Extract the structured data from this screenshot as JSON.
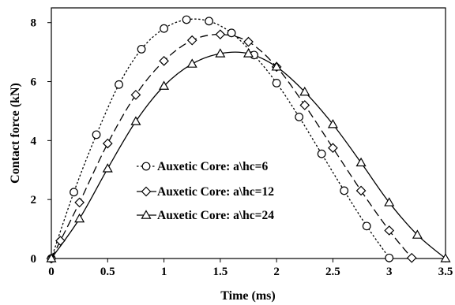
{
  "chart_data": {
    "type": "line",
    "title": "",
    "xlabel": "Time (ms)",
    "ylabel": "Contact force (kN)",
    "xlim": [
      0,
      3.5
    ],
    "ylim": [
      0,
      8.5
    ],
    "xticks": [
      0,
      0.5,
      1,
      1.5,
      2,
      2.5,
      3,
      3.5
    ],
    "xtick_labels": [
      "0",
      "0.5",
      "1",
      "1.5",
      "2",
      "2.5",
      "3",
      "3.5"
    ],
    "yticks": [
      0,
      2,
      4,
      6,
      8
    ],
    "ytick_labels": [
      "0",
      "2",
      "4",
      "6",
      "8"
    ],
    "grid": false,
    "legend_position": "center-left",
    "series": [
      {
        "name": "Auxetic Core: a\\hc=6",
        "marker": "circle",
        "line_style": "dotted",
        "color": "#000000",
        "points": [
          [
            0,
            0
          ],
          [
            0.2,
            2.25
          ],
          [
            0.4,
            4.2
          ],
          [
            0.6,
            5.9
          ],
          [
            0.8,
            7.1
          ],
          [
            1.0,
            7.8
          ],
          [
            1.2,
            8.1
          ],
          [
            1.4,
            8.05
          ],
          [
            1.6,
            7.65
          ],
          [
            1.8,
            6.9
          ],
          [
            2.0,
            5.95
          ],
          [
            2.2,
            4.8
          ],
          [
            2.4,
            3.55
          ],
          [
            2.6,
            2.3
          ],
          [
            2.8,
            1.1
          ],
          [
            3.0,
            0.02
          ]
        ]
      },
      {
        "name": "Auxetic Core: a\\hc=12",
        "marker": "diamond",
        "line_style": "dashed",
        "color": "#000000",
        "points": [
          [
            0,
            0
          ],
          [
            0.08,
            0.6
          ],
          [
            0.25,
            1.9
          ],
          [
            0.5,
            3.9
          ],
          [
            0.75,
            5.55
          ],
          [
            1.0,
            6.7
          ],
          [
            1.25,
            7.4
          ],
          [
            1.5,
            7.6
          ],
          [
            1.75,
            7.35
          ],
          [
            2.0,
            6.5
          ],
          [
            2.25,
            5.2
          ],
          [
            2.5,
            3.75
          ],
          [
            2.75,
            2.3
          ],
          [
            3.0,
            0.95
          ],
          [
            3.2,
            0.02
          ]
        ]
      },
      {
        "name": "Auxetic Core: a\\hc=24",
        "marker": "triangle",
        "line_style": "solid",
        "color": "#000000",
        "points": [
          [
            0,
            0
          ],
          [
            0.25,
            1.35
          ],
          [
            0.5,
            3.05
          ],
          [
            0.75,
            4.65
          ],
          [
            1.0,
            5.85
          ],
          [
            1.25,
            6.6
          ],
          [
            1.5,
            6.95
          ],
          [
            1.75,
            6.95
          ],
          [
            2.0,
            6.5
          ],
          [
            2.25,
            5.65
          ],
          [
            2.5,
            4.55
          ],
          [
            2.75,
            3.25
          ],
          [
            3.0,
            1.9
          ],
          [
            3.25,
            0.8
          ],
          [
            3.5,
            0
          ]
        ]
      }
    ]
  }
}
